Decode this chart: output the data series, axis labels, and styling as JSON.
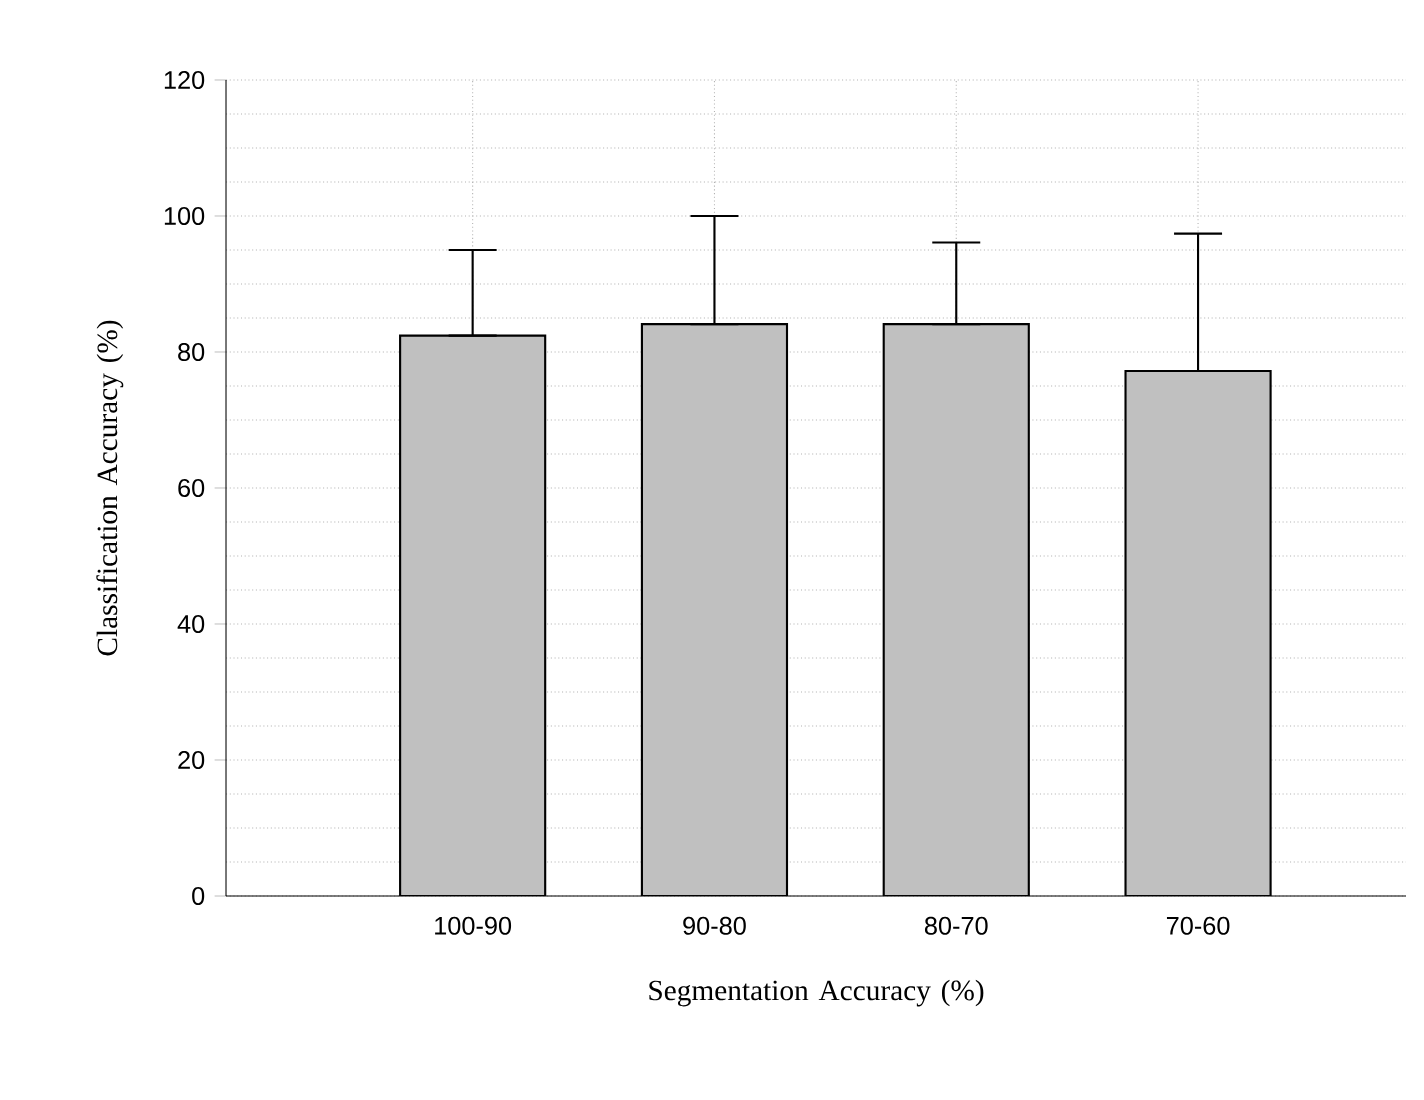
{
  "chart_data": {
    "type": "bar",
    "xlabel": "Segmentation Accuracy (%)",
    "ylabel": "Classification Accuracy (%)",
    "categories": [
      "100-90",
      "90-80",
      "80-70",
      "70-60"
    ],
    "values": [
      82.4,
      84.1,
      84.1,
      77.2
    ],
    "errors": [
      [
        82.4,
        95.0
      ],
      [
        84.1,
        100.0
      ],
      [
        84.1,
        96.1
      ],
      [
        77.2,
        97.4
      ]
    ],
    "color": "#c0c0c0",
    "ylim": [
      0,
      120
    ],
    "yticks": [
      0,
      20,
      40,
      60,
      80,
      100,
      120
    ],
    "grid": true
  }
}
